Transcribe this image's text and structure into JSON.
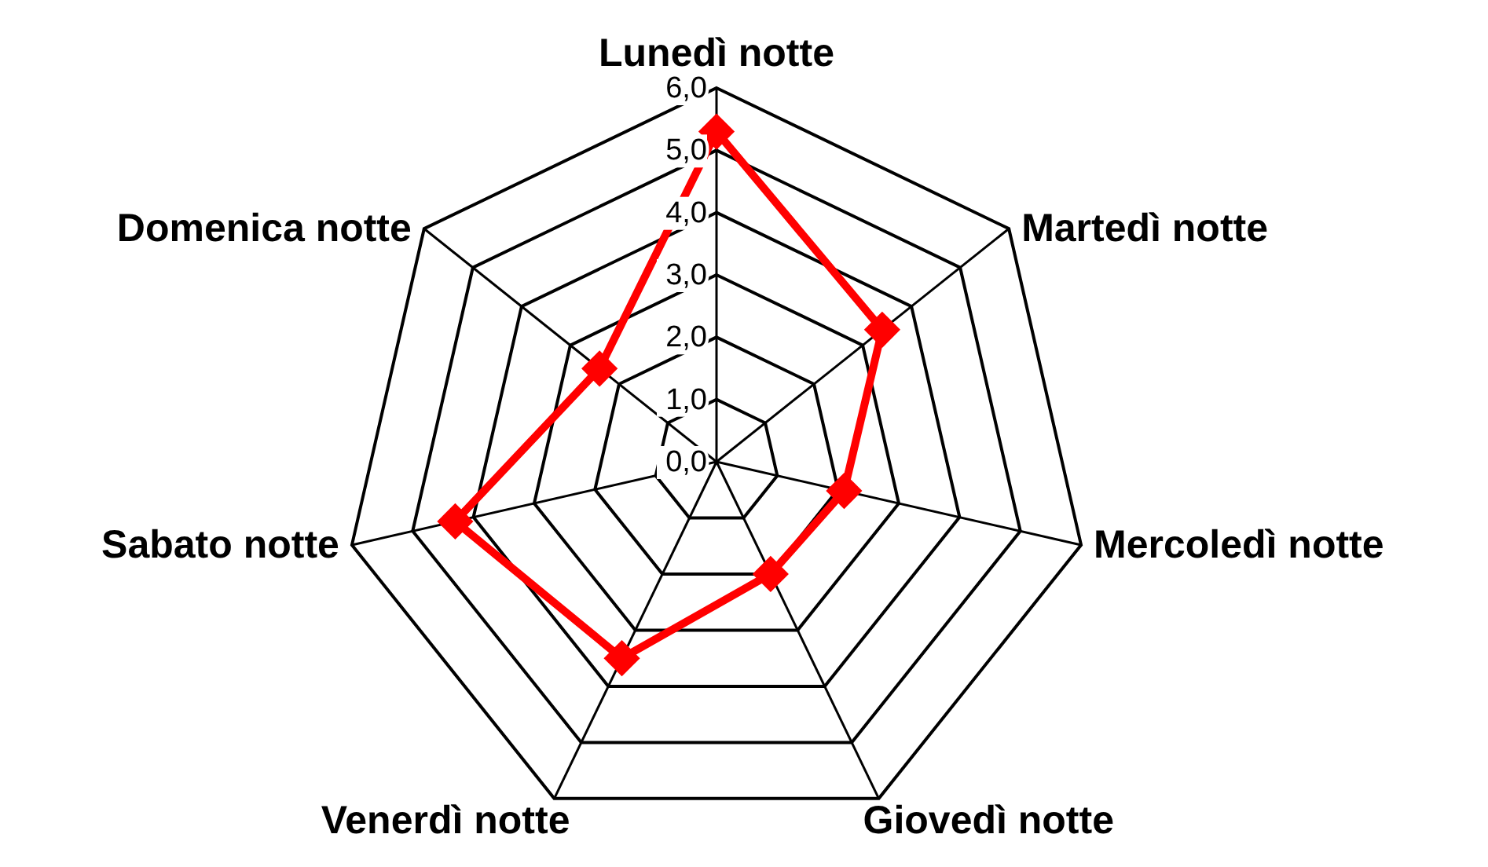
{
  "chart_data": {
    "type": "radar",
    "categories": [
      "Lunedì notte",
      "Martedì notte",
      "Mercoledì notte",
      "Giovedì notte",
      "Venerdì notte",
      "Sabato notte",
      "Domenica notte"
    ],
    "series": [
      {
        "color": "#ff0000",
        "values": [
          5.3,
          3.4,
          2.1,
          2.0,
          3.5,
          4.3,
          2.4
        ]
      }
    ],
    "ylim": [
      0,
      6
    ],
    "yticks": [
      {
        "value": 0,
        "label": "0,0"
      },
      {
        "value": 1,
        "label": "1,0"
      },
      {
        "value": 2,
        "label": "2,0"
      },
      {
        "value": 3,
        "label": "3,0"
      },
      {
        "value": 4,
        "label": "4,0"
      },
      {
        "value": 5,
        "label": "5,0"
      },
      {
        "value": 6,
        "label": "6,0"
      }
    ],
    "grid": true,
    "marker": "diamond",
    "line_style": "solid"
  }
}
